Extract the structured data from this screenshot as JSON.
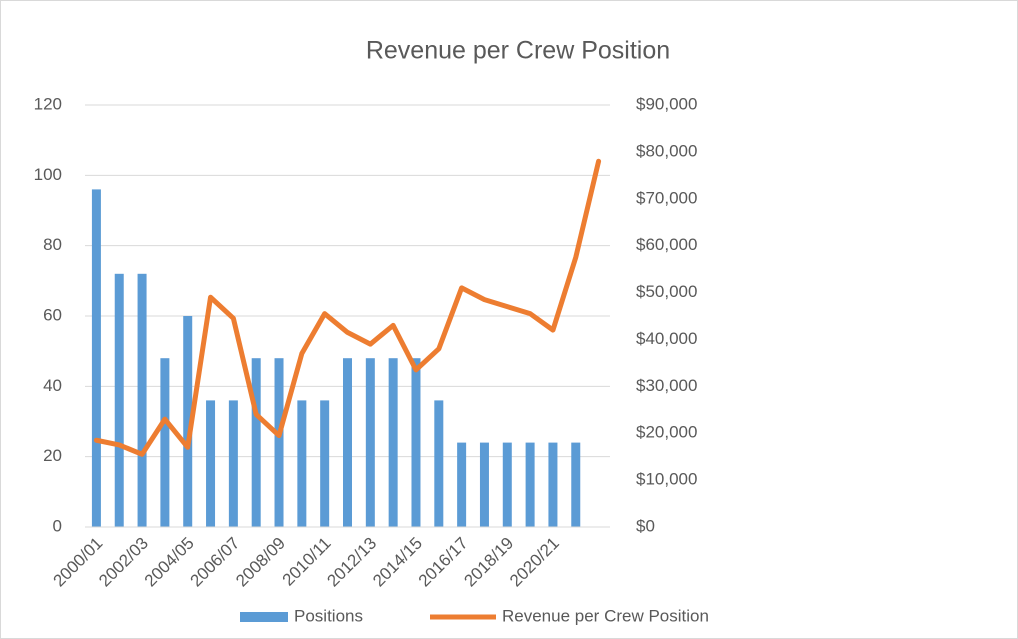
{
  "chart_data": {
    "type": "bar-line",
    "title": "Revenue per Crew Position",
    "categories": [
      "2000/01",
      null,
      "2002/03",
      null,
      "2004/05",
      null,
      "2006/07",
      null,
      "2008/09",
      null,
      "2010/11",
      null,
      "2012/13",
      null,
      "2014/15",
      null,
      "2016/17",
      null,
      "2018/19",
      null,
      "2020/21",
      null,
      null
    ],
    "series": [
      {
        "name": "Positions",
        "type": "bar",
        "color": "#5b9bd5",
        "values": [
          96,
          72,
          72,
          48,
          60,
          36,
          36,
          48,
          48,
          36,
          36,
          48,
          48,
          48,
          48,
          36,
          24,
          24,
          24,
          24,
          24,
          24,
          null
        ]
      },
      {
        "name": "Revenue per Crew Position",
        "type": "line",
        "axis": "y2",
        "color": "#ed7d31",
        "values": [
          18500,
          17500,
          15500,
          23000,
          17000,
          49000,
          44500,
          24000,
          19500,
          37000,
          45500,
          41500,
          39000,
          43000,
          33500,
          38000,
          51000,
          48500,
          47000,
          45500,
          42000,
          57500,
          78000
        ]
      }
    ],
    "ylim": [
      0,
      120
    ],
    "yticks": [
      0,
      20,
      40,
      60,
      80,
      100,
      120
    ],
    "y2lim": [
      0,
      90000
    ],
    "y2ticks": [
      {
        "value": 0,
        "label": "$0"
      },
      {
        "value": 10000,
        "label": "$10,000"
      },
      {
        "value": 20000,
        "label": "$20,000"
      },
      {
        "value": 30000,
        "label": "$30,000"
      },
      {
        "value": 40000,
        "label": "$40,000"
      },
      {
        "value": 50000,
        "label": "$50,000"
      },
      {
        "value": 60000,
        "label": "$60,000"
      },
      {
        "value": 70000,
        "label": "$70,000"
      },
      {
        "value": 80000,
        "label": "$80,000"
      },
      {
        "value": 90000,
        "label": "$90,000"
      }
    ],
    "grid": true,
    "legend": "bottom"
  }
}
